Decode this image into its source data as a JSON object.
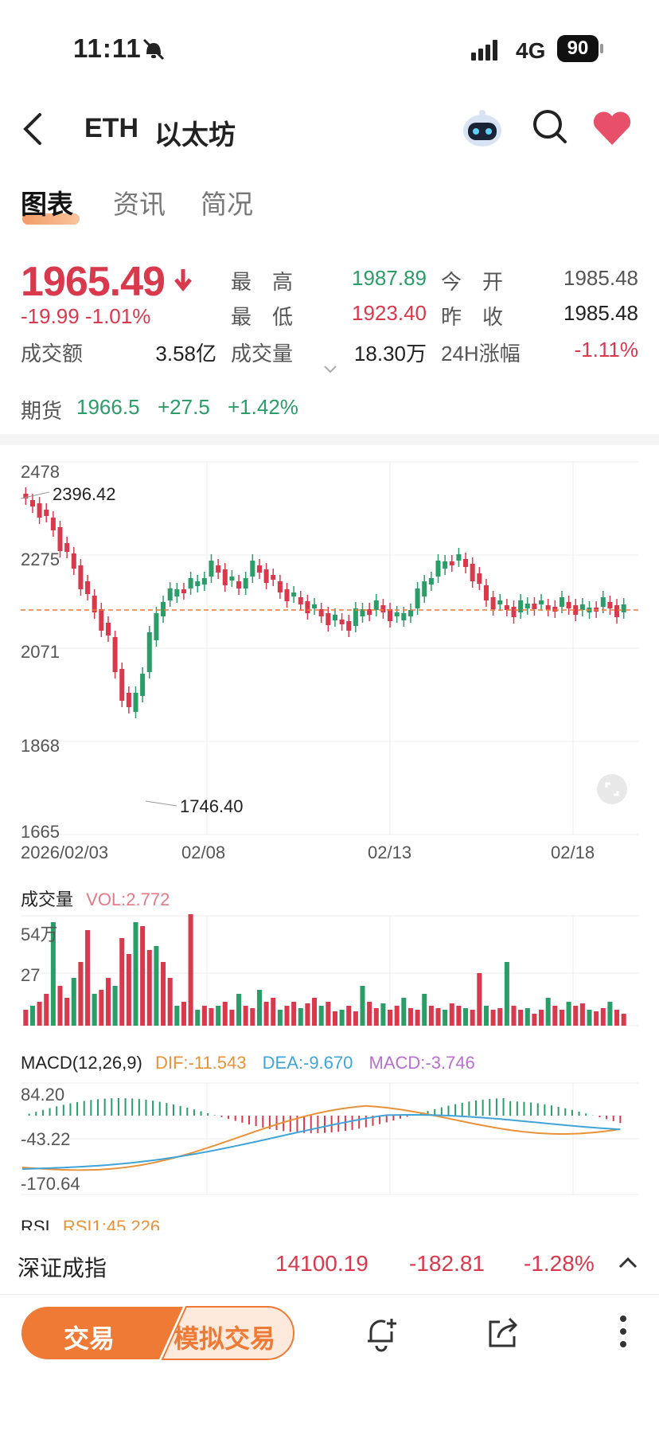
{
  "status": {
    "time": "11:11",
    "network": "4G",
    "battery": "90"
  },
  "header": {
    "symbol": "ETH",
    "name": "以太坊"
  },
  "tabs": [
    {
      "label": "图表",
      "active": true
    },
    {
      "label": "资讯",
      "active": false
    },
    {
      "label": "简况",
      "active": false
    }
  ],
  "quote": {
    "price": "1965.49",
    "change": "-19.99",
    "change_pct": "-1.01%",
    "high_label": "最　高",
    "high": "1987.89",
    "low_label": "最　低",
    "low": "1923.40",
    "open_label": "今　开",
    "open": "1985.48",
    "prev_label": "昨　收",
    "prev_close": "1985.48",
    "turnover_label": "成交额",
    "turnover": "3.58亿",
    "volume_label": "成交量",
    "volume": "18.30万",
    "change24_label": "24H涨幅",
    "change24": "-1.11%"
  },
  "futures": {
    "label": "期货",
    "price": "1966.5",
    "change": "+27.5",
    "change_pct": "+1.42%"
  },
  "kline": {
    "y_ticks": [
      "2478",
      "2275",
      "2071",
      "1868",
      "1665"
    ],
    "x_ticks": [
      "2026/02/03",
      "02/08",
      "02/13",
      "02/18"
    ],
    "max_label": "2396.42",
    "min_label": "1746.40"
  },
  "volume_panel": {
    "title": "成交量",
    "vol": "VOL:2.772",
    "y_ticks": [
      "54万",
      "27"
    ]
  },
  "macd_panel": {
    "title": "MACD(12,26,9)",
    "dif": "DIF:-11.543",
    "dea": "DEA:-9.670",
    "macd": "MACD:-3.746",
    "y_ticks": [
      "84.20",
      "-43.22",
      "-170.64"
    ]
  },
  "rsi_panel": {
    "title": "RSI",
    "rsi1": "RSI1:45.226"
  },
  "ticker": {
    "name": "深证成指",
    "value": "14100.19",
    "change": "-182.81",
    "change_pct": "-1.28%"
  },
  "bottom": {
    "trade_label": "交易",
    "sim_trade_label": "模拟交易"
  },
  "colors": {
    "up": "#d8394c",
    "down": "#2a9d68",
    "accent": "#ef7a36",
    "dif": "#e8923a",
    "dea": "#3fa4d8",
    "macd": "#b86fd0"
  },
  "icons": [
    "back-icon",
    "robot-icon",
    "search-icon",
    "heart-icon",
    "bell-add-icon",
    "share-icon",
    "more-icon",
    "fullscreen-icon"
  ]
}
